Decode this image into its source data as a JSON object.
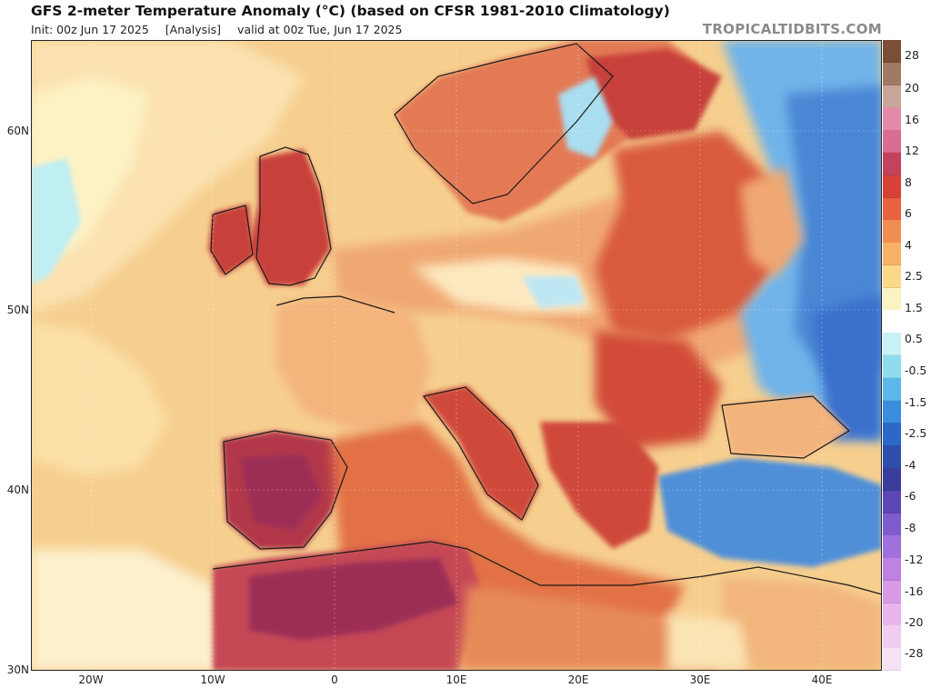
{
  "header": {
    "title": "GFS 2-meter Temperature Anomaly (°C) (based on CFSR 1981-2010 Climatology)",
    "init": "Init: 00z Jun 17 2025",
    "analysis": "[Analysis]",
    "valid": "valid at 00z Tue, Jun 17 2025",
    "brand": "TROPICALTIDBITS.COM"
  },
  "map": {
    "latitude_labels": [
      "60N",
      "50N",
      "40N",
      "30N"
    ],
    "longitude_labels": [
      "20W",
      "10W",
      "0",
      "10E",
      "20E",
      "30E",
      "40E"
    ],
    "colors": {
      "ocean_warm": "#f7d59a",
      "land_hot": "#c8403a",
      "extreme": "#9c2f57",
      "cold": "#5c9ce0"
    }
  },
  "colorbar": {
    "labels": [
      "28",
      "20",
      "16",
      "12",
      "8",
      "6",
      "4",
      "2.5",
      "1.5",
      "0.5",
      "-0.5",
      "-1.5",
      "-2.5",
      "-4",
      "-6",
      "-8",
      "-12",
      "-16",
      "-20",
      "-28"
    ],
    "colors": [
      "#7b4f36",
      "#a07a62",
      "#c7a699",
      "#e28aa7",
      "#d86e92",
      "#c4435c",
      "#d84236",
      "#e8623f",
      "#f08e52",
      "#f7b169",
      "#fbd88a",
      "#fdf2c4",
      "#ffffff",
      "#c9f2f6",
      "#90dcef",
      "#5cb8ea",
      "#3b8de0",
      "#2d68c8",
      "#2f4eae",
      "#3a3d9c",
      "#5d46b6",
      "#7e5cd0",
      "#a070dc",
      "#c082e2",
      "#d89ae6",
      "#e8b6ec",
      "#f0cdee",
      "#f7e2f4"
    ]
  }
}
